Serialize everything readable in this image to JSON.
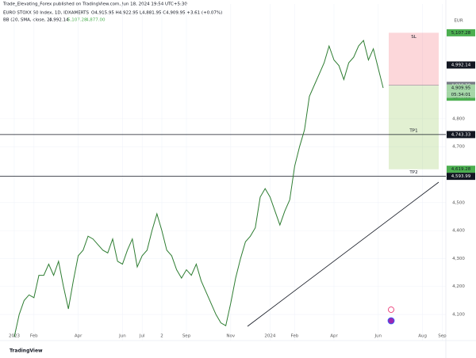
{
  "header": {
    "publisher": "Trade_Elevating_Forex published on TradingView.com, Jun 18, 2024 19:54 UTC+5:30",
    "symbol": "EURO STOXX 50 Index, 1D, IDXAMERTS",
    "ohlc": "O4,915.95 H4,922.95 L4,881.95 C4,909.95 +3.61 (+0.07%)",
    "indicator": "BB (20, SMA, close, 2)",
    "indicator_values": [
      "4,992.14",
      "5,107.28",
      "4,877.00"
    ],
    "currency": "EUR",
    "logo": "TradingView"
  },
  "chart_data": {
    "type": "line",
    "categories": [
      "2023",
      null,
      null,
      null,
      "Feb",
      null,
      null,
      null,
      null,
      null,
      null,
      null,
      null,
      "Apr",
      null,
      null,
      null,
      null,
      null,
      null,
      null,
      null,
      "Jun",
      null,
      null,
      null,
      "Jul",
      null,
      null,
      null,
      "2",
      null,
      null,
      null,
      null,
      "Sep",
      null,
      null,
      null,
      null,
      null,
      null,
      null,
      null,
      "Nov",
      null,
      null,
      null,
      null,
      null,
      null,
      null,
      "2024",
      null,
      null,
      null,
      null,
      "Feb",
      null,
      null,
      null,
      null,
      null,
      null,
      null,
      "Apr",
      null,
      null,
      null,
      null,
      null,
      null,
      null,
      null,
      "Jun",
      null,
      null,
      null,
      null,
      null,
      null,
      null,
      null,
      "Aug",
      null,
      null,
      null,
      "Sep",
      null
    ],
    "series": [
      {
        "name": "EURO STOXX 50 Index",
        "color": "#2e7d32",
        "values": [
          4020,
          4100,
          4150,
          4170,
          4160,
          4240,
          4240,
          4280,
          4240,
          4290,
          4200,
          4120,
          4220,
          4310,
          4330,
          4380,
          4370,
          4350,
          4330,
          4320,
          4370,
          4290,
          4280,
          4330,
          4370,
          4270,
          4310,
          4330,
          4400,
          4460,
          4400,
          4330,
          4310,
          4260,
          4230,
          4260,
          4240,
          4280,
          4220,
          4180,
          4140,
          4100,
          4070,
          4060,
          4140,
          4230,
          4300,
          4360,
          4380,
          4410,
          4520,
          4550,
          4520,
          4470,
          4420,
          4470,
          4510,
          4630,
          4700,
          4760,
          4880,
          4920,
          4960,
          5000,
          5060,
          5010,
          4990,
          4940,
          5000,
          5020,
          5060,
          5080,
          5010,
          5050,
          4980,
          4909.95,
          null,
          null,
          null,
          null,
          null,
          null,
          null,
          null,
          null,
          null,
          null,
          null,
          null
        ]
      }
    ],
    "ylim": [
      4035,
      5182
    ],
    "yticks": [
      {
        "value": 4100,
        "label": "4,100"
      },
      {
        "value": 4200,
        "label": "4,200"
      },
      {
        "value": 4300,
        "label": "4,300"
      },
      {
        "value": 4400,
        "label": "4,400"
      },
      {
        "value": 4500,
        "label": "4,500"
      },
      {
        "value": 4600,
        "label": "4,600"
      },
      {
        "value": 4700,
        "label": "4,700"
      },
      {
        "value": 4800,
        "label": "4,800"
      }
    ],
    "grid": true,
    "price_labels": [
      {
        "value": 5107.28,
        "label": "5,107.28",
        "color": "#4caf50"
      },
      {
        "value": 4992.14,
        "label": "4,992.14",
        "color": "#131722"
      },
      {
        "value": 4919.29,
        "label": "4,919.29",
        "color": "#787b86"
      },
      {
        "value": 4909.95,
        "label": "4,909.95",
        "color": "#a5d6a7"
      },
      {
        "value": 4877.0,
        "label": "4,877.00",
        "color": "#4caf50"
      },
      {
        "value": 4743.33,
        "label": "4,743.33",
        "color": "#131722",
        "line": true
      },
      {
        "value": 4619.28,
        "label": "4,619.28",
        "color": "#4caf50"
      },
      {
        "value": 4593.99,
        "label": "4,593.99",
        "color": "#131722",
        "line": true
      }
    ],
    "countdown": "05:34:01",
    "position": {
      "stop": "SL",
      "target1": "TP1",
      "target2": "TP2"
    }
  }
}
